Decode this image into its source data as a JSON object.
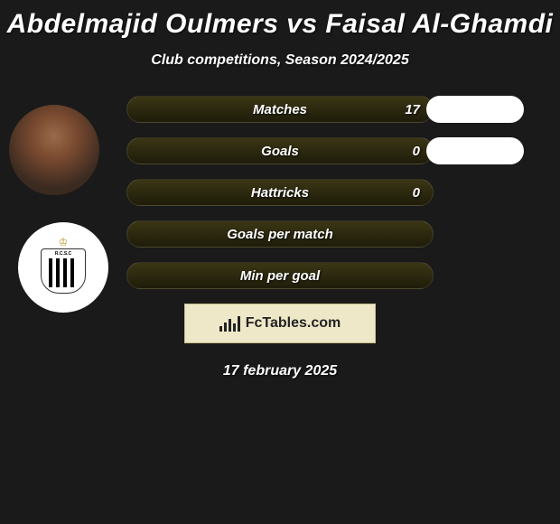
{
  "title": "Abdelmajid Oulmers vs Faisal Al-Ghamdi",
  "subtitle": "Club competitions, Season 2024/2025",
  "stats": [
    {
      "label": "Matches",
      "left_value": "17",
      "left_width": 340,
      "right_width": 108,
      "show_right": true
    },
    {
      "label": "Goals",
      "left_value": "0",
      "left_width": 340,
      "right_width": 108,
      "show_right": true
    },
    {
      "label": "Hattricks",
      "left_value": "0",
      "left_width": 340,
      "right_width": 0,
      "show_right": false
    },
    {
      "label": "Goals per match",
      "left_value": "",
      "left_width": 340,
      "right_width": 0,
      "show_right": false
    },
    {
      "label": "Min per goal",
      "left_value": "",
      "left_width": 340,
      "right_width": 0,
      "show_right": false
    }
  ],
  "colors": {
    "background": "#1a1a1a",
    "pill_left_top": "#3a3615",
    "pill_left_bottom": "#1f1c0a",
    "pill_right": "#ffffff",
    "text": "#ffffff",
    "logo_bg": "#eee8c8",
    "logo_border": "#c8c088",
    "logo_text": "#222222"
  },
  "logo_text": "FcTables.com",
  "date": "17 february 2025",
  "club_code": "R.C.S.C"
}
